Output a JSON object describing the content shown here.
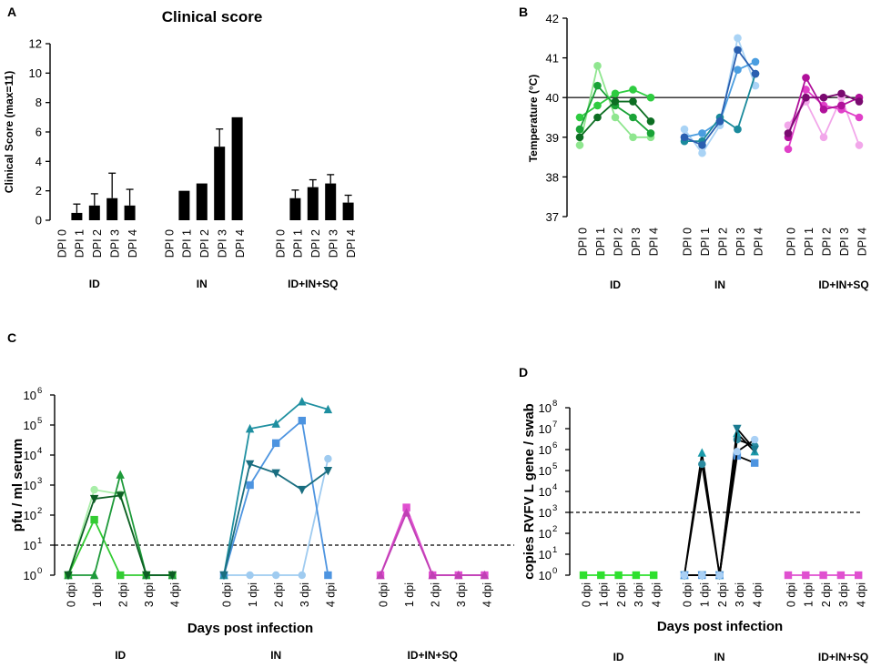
{
  "chart_data": [
    {
      "panel": "A",
      "type": "bar",
      "title": "Clinical score",
      "ylabel": "Clinical Score (max=11)",
      "ylim": [
        0,
        12
      ],
      "yticks": [
        "0",
        "2",
        "4",
        "6",
        "8",
        "10",
        "12"
      ],
      "categories": [
        "DPI 0",
        "DPI 1",
        "DPI 2",
        "DPI 3",
        "DPI 4"
      ],
      "groups": [
        {
          "name": "ID",
          "values": [
            0,
            0.5,
            1.0,
            1.5,
            1.0
          ],
          "errors": [
            0,
            0.6,
            0.8,
            1.7,
            1.1
          ]
        },
        {
          "name": "IN",
          "values": [
            0,
            2.0,
            2.5,
            5.0,
            7.0
          ],
          "errors": [
            0,
            0,
            0,
            1.2,
            0
          ]
        },
        {
          "name": "ID+IN+SQ",
          "values": [
            0,
            1.5,
            2.25,
            2.5,
            1.2
          ],
          "errors": [
            0,
            0.55,
            0.5,
            0.6,
            0.5
          ]
        }
      ]
    },
    {
      "panel": "B",
      "type": "line",
      "ylabel": "Temperature (°C)",
      "ylim": [
        37,
        42
      ],
      "yticks": [
        "37",
        "38",
        "39",
        "40",
        "41",
        "42"
      ],
      "reference_line": 40,
      "categories": [
        "DPI 0",
        "DPI 1",
        "DPI 2",
        "DPI 3",
        "DPI 4"
      ],
      "groups": [
        {
          "name": "ID",
          "series": [
            {
              "color": "#8fe68f",
              "values": [
                38.8,
                40.8,
                39.5,
                39.0,
                39.0
              ]
            },
            {
              "color": "#2ecc40",
              "values": [
                39.5,
                39.8,
                40.1,
                40.2,
                40.0
              ]
            },
            {
              "color": "#1aa337",
              "values": [
                39.2,
                40.3,
                39.8,
                39.5,
                39.1
              ]
            },
            {
              "color": "#0c6e22",
              "values": [
                39.0,
                39.5,
                39.9,
                39.9,
                39.4
              ]
            }
          ]
        },
        {
          "name": "IN",
          "series": [
            {
              "color": "#a9d3f5",
              "values": [
                39.2,
                38.6,
                39.3,
                41.5,
                40.3
              ]
            },
            {
              "color": "#4a9de0",
              "values": [
                39.0,
                39.1,
                39.4,
                40.7,
                40.9
              ]
            },
            {
              "color": "#1a8a9c",
              "values": [
                38.9,
                38.9,
                39.5,
                39.2,
                40.6
              ]
            },
            {
              "color": "#2a5fb0",
              "values": [
                39.0,
                38.8,
                39.4,
                41.2,
                40.6
              ]
            }
          ]
        },
        {
          "name": "ID+IN+SQ",
          "series": [
            {
              "color": "#f2a7ea",
              "values": [
                39.3,
                39.9,
                39.0,
                40.0,
                38.8
              ]
            },
            {
              "color": "#e040c8",
              "values": [
                38.7,
                40.2,
                39.8,
                39.7,
                39.5
              ]
            },
            {
              "color": "#b0109a",
              "values": [
                39.0,
                40.5,
                39.7,
                39.8,
                40.0
              ]
            },
            {
              "color": "#7a0a70",
              "values": [
                39.1,
                40.0,
                40.0,
                40.1,
                39.9
              ]
            }
          ]
        }
      ]
    },
    {
      "panel": "C",
      "type": "line",
      "yscale": "log",
      "ylabel": "pfu / ml serum",
      "xlabel": "Days post infection",
      "ylim_exp": [
        0,
        6
      ],
      "ytick_mantissa": "10",
      "ytick_exponents": [
        "0",
        "1",
        "2",
        "3",
        "4",
        "5",
        "6"
      ],
      "limit_of_detection": 10,
      "categories": [
        "0 dpi",
        "1 dpi",
        "2 dpi",
        "3 dpi",
        "4 dpi"
      ],
      "groups": [
        {
          "name": "ID",
          "series": [
            {
              "color": "#a8eea8",
              "marker": "circle",
              "values": [
                1,
                700,
                500,
                1,
                1
              ]
            },
            {
              "color": "#33cc33",
              "marker": "square",
              "values": [
                1,
                70,
                1,
                1,
                1
              ]
            },
            {
              "color": "#1e9a3a",
              "marker": "triangle",
              "values": [
                1,
                1,
                2200,
                1,
                1
              ]
            },
            {
              "color": "#0d5e24",
              "marker": "triangle-down",
              "values": [
                1,
                350,
                450,
                1,
                1
              ]
            }
          ]
        },
        {
          "name": "IN",
          "series": [
            {
              "color": "#9fcbf0",
              "marker": "circle",
              "values": [
                1,
                1,
                1,
                1,
                7500
              ]
            },
            {
              "color": "#4d94e0",
              "marker": "square",
              "values": [
                1,
                1000,
                25000,
                140000,
                1
              ]
            },
            {
              "color": "#1e8fa0",
              "marker": "triangle",
              "values": [
                1,
                75000,
                110000,
                600000,
                330000
              ]
            },
            {
              "color": "#1a6e80",
              "marker": "triangle-down",
              "values": [
                1,
                5000,
                2500,
                700,
                3000
              ]
            }
          ]
        },
        {
          "name": "ID+IN+SQ",
          "series": [
            {
              "color": "#f5a6ec",
              "marker": "circle",
              "values": [
                1,
                150,
                1,
                1,
                1
              ]
            },
            {
              "color": "#e050d0",
              "marker": "square",
              "values": [
                1,
                180,
                1,
                1,
                1
              ]
            },
            {
              "color": "#c040b5",
              "marker": "triangle",
              "values": [
                1,
                120,
                1,
                1,
                1
              ]
            }
          ]
        }
      ]
    },
    {
      "panel": "D",
      "type": "line",
      "yscale": "log",
      "ylabel": "copies RVFV L gene / swab",
      "xlabel": "Days post infection",
      "ylim_exp": [
        0,
        8
      ],
      "ytick_mantissa": "10",
      "ytick_exponents": [
        "0",
        "1",
        "2",
        "3",
        "4",
        "5",
        "6",
        "7",
        "8"
      ],
      "limit_of_detection": 1000,
      "categories": [
        "0 dpi",
        "1 dpi",
        "2 dpi",
        "3 dpi",
        "4 dpi"
      ],
      "groups": [
        {
          "name": "ID",
          "series": [
            {
              "color": "#2ee02e",
              "marker": "square",
              "line": "#2ee02e",
              "values": [
                1,
                1,
                1,
                1,
                1
              ]
            }
          ]
        },
        {
          "name": "IN",
          "series": [
            {
              "color": "#1a9aaa",
              "marker": "triangle",
              "line": "#000000",
              "values": [
                1,
                700000,
                1,
                6000000,
                800000
              ]
            },
            {
              "color": "#2a8aa0",
              "marker": "circle",
              "line": "#000000",
              "values": [
                1,
                200000,
                1,
                3000000,
                1500000
              ]
            },
            {
              "color": "#1a7a90",
              "marker": "triangle-down",
              "line": "#000000",
              "values": [
                1,
                1,
                1,
                10000000,
                1000000
              ]
            },
            {
              "color": "#4d94e0",
              "marker": "square",
              "line": "#000000",
              "values": [
                1,
                1,
                1,
                500000,
                230000
              ]
            },
            {
              "color": "#a9d0f5",
              "marker": "circle",
              "line": "#000000",
              "values": [
                1,
                1,
                1,
                800000,
                3000000
              ]
            }
          ]
        },
        {
          "name": "ID+IN+SQ",
          "series": [
            {
              "color": "#e050d0",
              "marker": "square",
              "line": "#e050d0",
              "values": [
                1,
                1,
                1,
                1,
                1
              ]
            }
          ]
        }
      ]
    }
  ]
}
